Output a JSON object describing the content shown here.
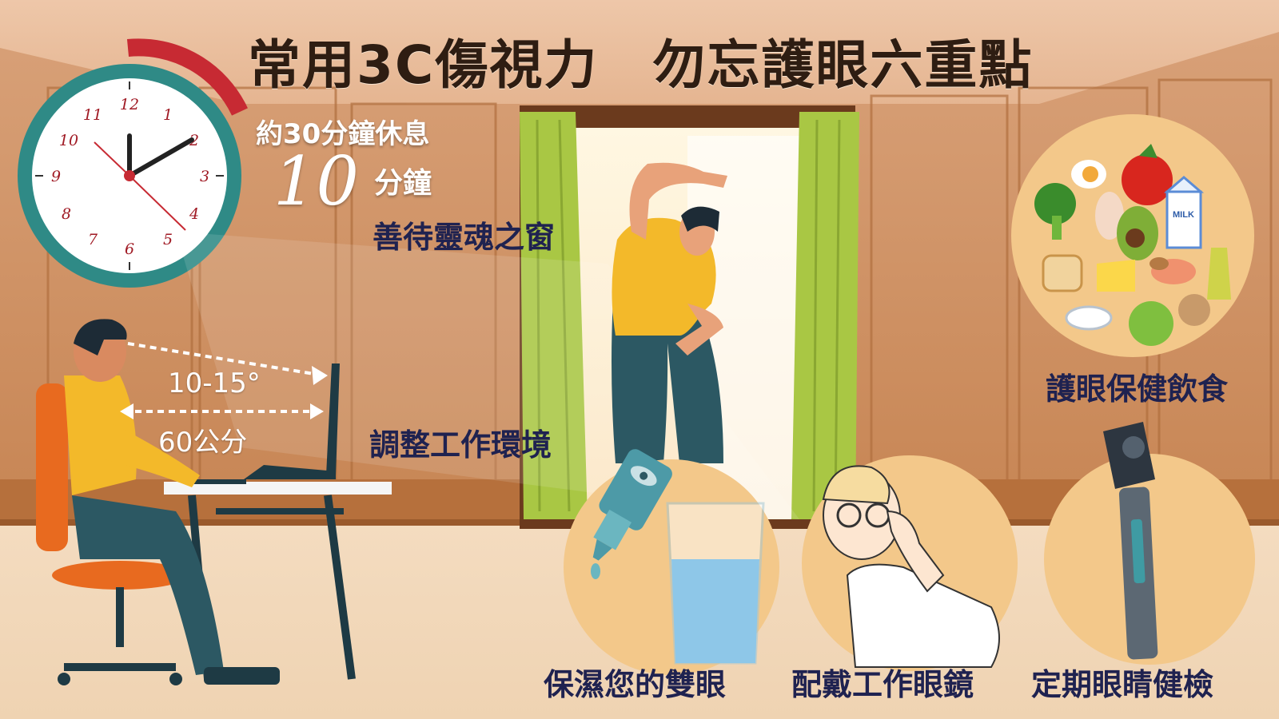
{
  "title": "常用3C傷視力　勿忘護眼六重點",
  "rest": {
    "line1": "約30分鐘休息",
    "big_number": "10",
    "unit": "分鐘",
    "caption": "善待靈魂之窗"
  },
  "clock": {
    "numbers": [
      "12",
      "1",
      "2",
      "3",
      "4",
      "5",
      "6",
      "7",
      "8",
      "9",
      "10",
      "11"
    ]
  },
  "workspace": {
    "angle": "10-15°",
    "distance": "60公分",
    "caption": "調整工作環境"
  },
  "diet": {
    "caption": "護眼保健飲食",
    "milk_label": "MILK"
  },
  "moisture": {
    "caption": "保濕您的雙眼"
  },
  "glasses": {
    "caption": "配戴工作眼鏡"
  },
  "checkup": {
    "caption": "定期眼睛健檢"
  },
  "colors": {
    "wall": "#c98a5a",
    "title_text": "#2e1d12",
    "caption_text": "#1f2250",
    "clock_rim": "#2f8a86",
    "clock_arc": "#c72a33",
    "shirt": "#f3b92a",
    "curtain": "#a9c744",
    "circle_bg": "#f3c88a"
  }
}
